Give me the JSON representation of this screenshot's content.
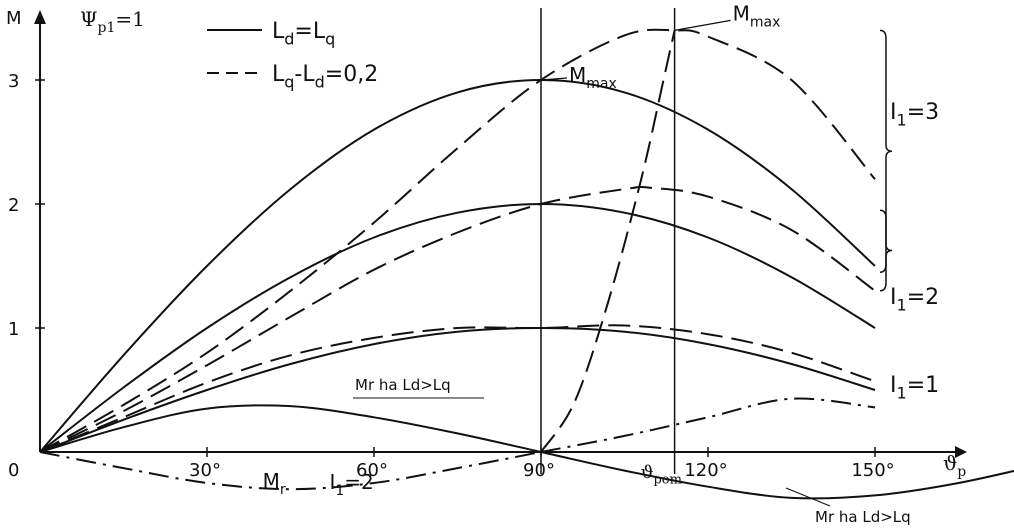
{
  "chart_data": {
    "type": "line",
    "xlim": [
      0,
      160
    ],
    "ylim": [
      0,
      3.5
    ],
    "x_ticks": [
      {
        "value": 0,
        "label": "0"
      },
      {
        "value": 30,
        "label": "30°"
      },
      {
        "value": 60,
        "label": "60°"
      },
      {
        "value": 90,
        "label": "90°"
      },
      {
        "value": 120,
        "label": "120°"
      },
      {
        "value": 150,
        "label": "150°"
      }
    ],
    "y_ticks": [
      {
        "value": 1,
        "label": "1"
      },
      {
        "value": 2,
        "label": "2"
      },
      {
        "value": 3,
        "label": "3"
      }
    ],
    "y_axis_label": "M",
    "x_axis_label": "ϑ",
    "x_axis_label_sub": "p",
    "corner_label_main": "Ψ",
    "corner_label_sub": "p1",
    "corner_label_suffix": "=1",
    "legend": [
      {
        "style": "solid",
        "main": "L",
        "sub1": "d",
        "mid": "=L",
        "sub2": "q",
        "tail": ""
      },
      {
        "style": "dashed",
        "main": "L",
        "sub1": "q",
        "mid": "-L",
        "sub2": "d",
        "tail": "=0,2"
      }
    ],
    "vlines": [
      90,
      114
    ],
    "vline_label": {
      "x": 114,
      "main": "ϑ",
      "sub": "pom"
    },
    "mmax_labels": [
      {
        "x": 90,
        "y": 3.0,
        "main": "M",
        "sub": "max"
      },
      {
        "x": 114,
        "y": 3.4,
        "main": "M",
        "sub": "max"
      }
    ],
    "current_labels": [
      {
        "main": "I",
        "sub": "1",
        "tail": "=3",
        "y": 2.75,
        "span": [
          1.45,
          3.4
        ]
      },
      {
        "main": "I",
        "sub": "1",
        "tail": "=2",
        "y": 1.26,
        "span": [
          1.3,
          1.95
        ]
      },
      {
        "main": "I",
        "sub": "1",
        "tail": "=1",
        "y": 0.55,
        "span": null
      }
    ],
    "mr_label": {
      "main": "M",
      "sub": "r",
      "x": 40,
      "y": -0.28
    },
    "i12_label": {
      "main": "I",
      "sub": "1",
      "tail": "=2",
      "x": 52,
      "y": -0.28
    },
    "annotations": [
      "Mr ha Ld>Lq",
      "Mr ha Ld>Lq"
    ],
    "series": [
      {
        "style": "solid",
        "x": [
          0,
          15,
          30,
          45,
          60,
          75,
          90,
          105,
          120,
          135,
          150
        ],
        "y": [
          0,
          0.78,
          1.5,
          2.12,
          2.6,
          2.9,
          3.0,
          2.9,
          2.6,
          2.12,
          1.5
        ]
      },
      {
        "style": "solid",
        "x": [
          0,
          15,
          30,
          45,
          60,
          75,
          90,
          105,
          120,
          135,
          150
        ],
        "y": [
          0,
          0.52,
          1.0,
          1.41,
          1.73,
          1.93,
          2.0,
          1.93,
          1.73,
          1.41,
          1.0
        ]
      },
      {
        "style": "solid",
        "x": [
          0,
          15,
          30,
          45,
          60,
          75,
          90,
          105,
          120,
          135,
          150
        ],
        "y": [
          0,
          0.26,
          0.5,
          0.71,
          0.87,
          0.97,
          1.0,
          0.97,
          0.87,
          0.71,
          0.5
        ]
      },
      {
        "style": "solid",
        "x": [
          0,
          15,
          30,
          45,
          60,
          75,
          90,
          105,
          120,
          135,
          150,
          165,
          180
        ],
        "y": [
          0,
          0.2,
          0.35,
          0.37,
          0.28,
          0.15,
          0.0,
          -0.15,
          -0.28,
          -0.37,
          -0.35,
          -0.25,
          -0.1
        ]
      },
      {
        "style": "dashed",
        "x": [
          0,
          15,
          30,
          45,
          60,
          75,
          90,
          105,
          114,
          120,
          135,
          150
        ],
        "y": [
          0,
          0.38,
          0.8,
          1.3,
          1.85,
          2.45,
          3.0,
          3.36,
          3.4,
          3.35,
          3.0,
          2.2
        ]
      },
      {
        "style": "dashed",
        "x": [
          0,
          15,
          30,
          45,
          60,
          75,
          90,
          105,
          110,
          120,
          135,
          150
        ],
        "y": [
          0,
          0.33,
          0.7,
          1.09,
          1.47,
          1.77,
          2.0,
          2.12,
          2.13,
          2.06,
          1.79,
          1.3
        ]
      },
      {
        "style": "dashed",
        "x": [
          0,
          15,
          30,
          45,
          60,
          75,
          90,
          105,
          120,
          135,
          150
        ],
        "y": [
          0,
          0.28,
          0.56,
          0.78,
          0.92,
          1.0,
          1.0,
          1.02,
          0.95,
          0.8,
          0.57
        ]
      },
      {
        "style": "dashed",
        "x": [
          90,
          96,
          102,
          108,
          112,
          114
        ],
        "y": [
          0,
          0.4,
          1.2,
          2.2,
          3.0,
          3.4
        ]
      },
      {
        "style": "dashdot",
        "x": [
          0,
          15,
          30,
          45,
          60,
          75,
          90
        ],
        "y": [
          0,
          -0.13,
          -0.25,
          -0.3,
          -0.25,
          -0.13,
          0
        ]
      },
      {
        "style": "dashdot",
        "x": [
          90,
          105,
          120,
          135,
          150
        ],
        "y": [
          0,
          0.13,
          0.28,
          0.43,
          0.36
        ]
      }
    ]
  }
}
